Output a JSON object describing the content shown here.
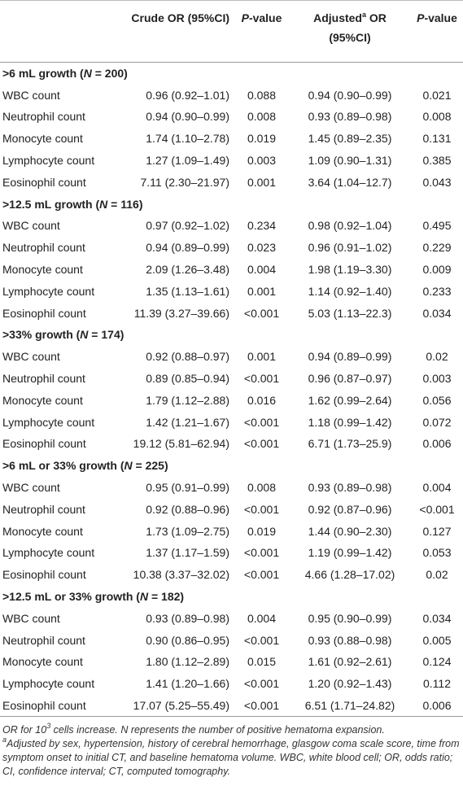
{
  "table": {
    "header": {
      "crude": "Crude OR (95%CI)",
      "p_value": [
        "P",
        "-value"
      ],
      "adjusted": [
        "Adjusted",
        "a",
        " OR",
        "(95%CI)"
      ],
      "adjusted_p_value": [
        "P",
        "-value"
      ]
    },
    "sections": [
      {
        "title": [
          ">6 mL growth (",
          "N",
          " = 200)"
        ],
        "rows": [
          [
            "WBC count",
            "0.96 (0.92–1.01)",
            "0.088",
            "0.94 (0.90–0.99)",
            "0.021"
          ],
          [
            "Neutrophil count",
            "0.94 (0.90–0.99)",
            "0.008",
            "0.93 (0.89–0.98)",
            "0.008"
          ],
          [
            "Monocyte count",
            "1.74 (1.10–2.78)",
            "0.019",
            "1.45 (0.89–2.35)",
            "0.131"
          ],
          [
            "Lymphocyte count",
            "1.27 (1.09–1.49)",
            "0.003",
            "1.09 (0.90–1.31)",
            "0.385"
          ],
          [
            "Eosinophil count",
            "7.11 (2.30–21.97)",
            "0.001",
            "3.64 (1.04–12.7)",
            "0.043"
          ]
        ]
      },
      {
        "title": [
          ">12.5 mL growth (",
          "N",
          " = 116)"
        ],
        "rows": [
          [
            "WBC count",
            "0.97 (0.92–1.02)",
            "0.234",
            "0.98 (0.92–1.04)",
            "0.495"
          ],
          [
            "Neutrophil count",
            "0.94 (0.89–0.99)",
            "0.023",
            "0.96 (0.91–1.02)",
            "0.229"
          ],
          [
            "Monocyte count",
            "2.09 (1.26–3.48)",
            "0.004",
            "1.98 (1.19–3.30)",
            "0.009"
          ],
          [
            "Lymphocyte count",
            "1.35 (1.13–1.61)",
            "0.001",
            "1.14 (0.92–1.40)",
            "0.233"
          ],
          [
            "Eosinophil count",
            "11.39 (3.27–39.66)",
            "<0.001",
            "5.03 (1.13–22.3)",
            "0.034"
          ]
        ]
      },
      {
        "title": [
          ">33% growth (",
          "N",
          " = 174)"
        ],
        "rows": [
          [
            "WBC count",
            "0.92 (0.88–0.97)",
            "0.001",
            "0.94 (0.89–0.99)",
            "0.02"
          ],
          [
            "Neutrophil count",
            "0.89 (0.85–0.94)",
            "<0.001",
            "0.96 (0.87–0.97)",
            "0.003"
          ],
          [
            "Monocyte count",
            "1.79 (1.12–2.88)",
            "0.016",
            "1.62 (0.99–2.64)",
            "0.056"
          ],
          [
            "Lymphocyte count",
            "1.42 (1.21–1.67)",
            "<0.001",
            "1.18 (0.99–1.42)",
            "0.072"
          ],
          [
            "Eosinophil count",
            "19.12 (5.81–62.94)",
            "<0.001",
            "6.71 (1.73–25.9)",
            "0.006"
          ]
        ]
      },
      {
        "title": [
          ">6 mL or 33% growth (",
          "N",
          " = 225)"
        ],
        "rows": [
          [
            "WBC count",
            "0.95 (0.91–0.99)",
            "0.008",
            "0.93 (0.89–0.98)",
            "0.004"
          ],
          [
            "Neutrophil count",
            "0.92 (0.88–0.96)",
            "<0.001",
            "0.92 (0.87–0.96)",
            "<0.001"
          ],
          [
            "Monocyte count",
            "1.73 (1.09–2.75)",
            "0.019",
            "1.44 (0.90–2.30)",
            "0.127"
          ],
          [
            "Lymphocyte count",
            "1.37 (1.17–1.59)",
            "<0.001",
            "1.19 (0.99–1.42)",
            "0.053"
          ],
          [
            "Eosinophil count",
            "10.38 (3.37–32.02)",
            "<0.001",
            "4.66 (1.28–17.02)",
            "0.02"
          ]
        ]
      },
      {
        "title": [
          ">12.5 mL or 33% growth (",
          "N",
          " = 182)"
        ],
        "rows": [
          [
            "WBC count",
            "0.93 (0.89–0.98)",
            "0.004",
            "0.95 (0.90–0.99)",
            "0.034"
          ],
          [
            "Neutrophil count",
            "0.90 (0.86–0.95)",
            "<0.001",
            "0.93 (0.88–0.98)",
            "0.005"
          ],
          [
            "Monocyte count",
            "1.80 (1.12–2.89)",
            "0.015",
            "1.61 (0.92–2.61)",
            "0.124"
          ],
          [
            "Lymphocyte count",
            "1.41 (1.20–1.66)",
            "<0.001",
            "1.20 (0.92–1.43)",
            "0.112"
          ],
          [
            "Eosinophil count",
            "17.07 (5.25–55.49)",
            "<0.001",
            "6.51 (1.71–24.82)",
            "0.006"
          ]
        ]
      }
    ],
    "footnotes": [
      [
        "OR for 10",
        "3",
        " cells increase. N represents the number of positive hematoma expansion."
      ],
      [
        "a",
        "Adjusted by sex, hypertension, history of cerebral hemorrhage, glasgow coma scale score, time from symptom onset to initial CT, and baseline hematoma volume. WBC, white blood cell; OR, odds ratio; CI, confidence interval; CT, computed tomography."
      ]
    ]
  }
}
